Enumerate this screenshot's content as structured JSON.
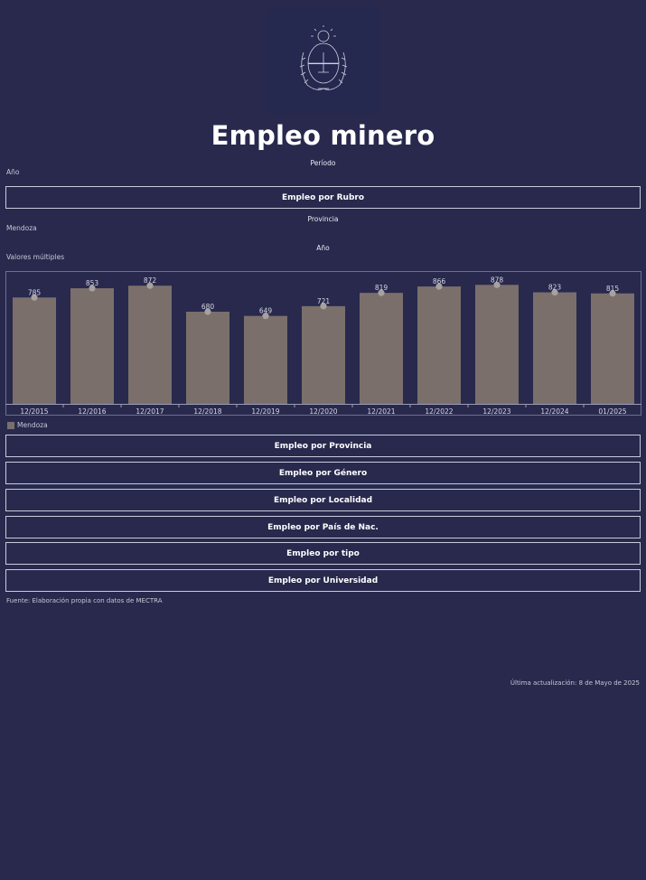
{
  "page": {
    "title": "Empleo minero"
  },
  "filters": {
    "periodo_label": "Período",
    "periodo_value": "Año",
    "provincia_label": "Provincia",
    "provincia_value": "Mendoza",
    "anio_label": "Año",
    "anio_value": "Valores múltiples"
  },
  "buttons": {
    "rubro": "Empleo por Rubro",
    "provincia": "Empleo por Provincia",
    "genero": "Empleo por Género",
    "localidad": "Empleo por Localidad",
    "pais": "Empleo por País de Nac.",
    "tipo": "Empleo por tipo",
    "universidad": "Empleo por Universidad"
  },
  "footer": {
    "source": "Fuente: Elaboración propia con datos de MECTRA",
    "updated": "Última actualización: 8 de Mayo de 2025"
  },
  "colors": {
    "background": "#28294d",
    "bar": "#7a6f6b",
    "marker": "#a7a19f"
  },
  "chart_data": {
    "type": "bar",
    "categories": [
      "12/2015",
      "12/2016",
      "12/2017",
      "12/2018",
      "12/2019",
      "12/2020",
      "12/2021",
      "12/2022",
      "12/2023",
      "12/2024",
      "01/2025"
    ],
    "series": [
      {
        "name": "Mendoza",
        "values": [
          785,
          853,
          872,
          680,
          649,
          721,
          819,
          866,
          878,
          823,
          815
        ]
      }
    ],
    "ylim": [
      0,
      980
    ],
    "legend": "bottom-left",
    "grid": false
  }
}
